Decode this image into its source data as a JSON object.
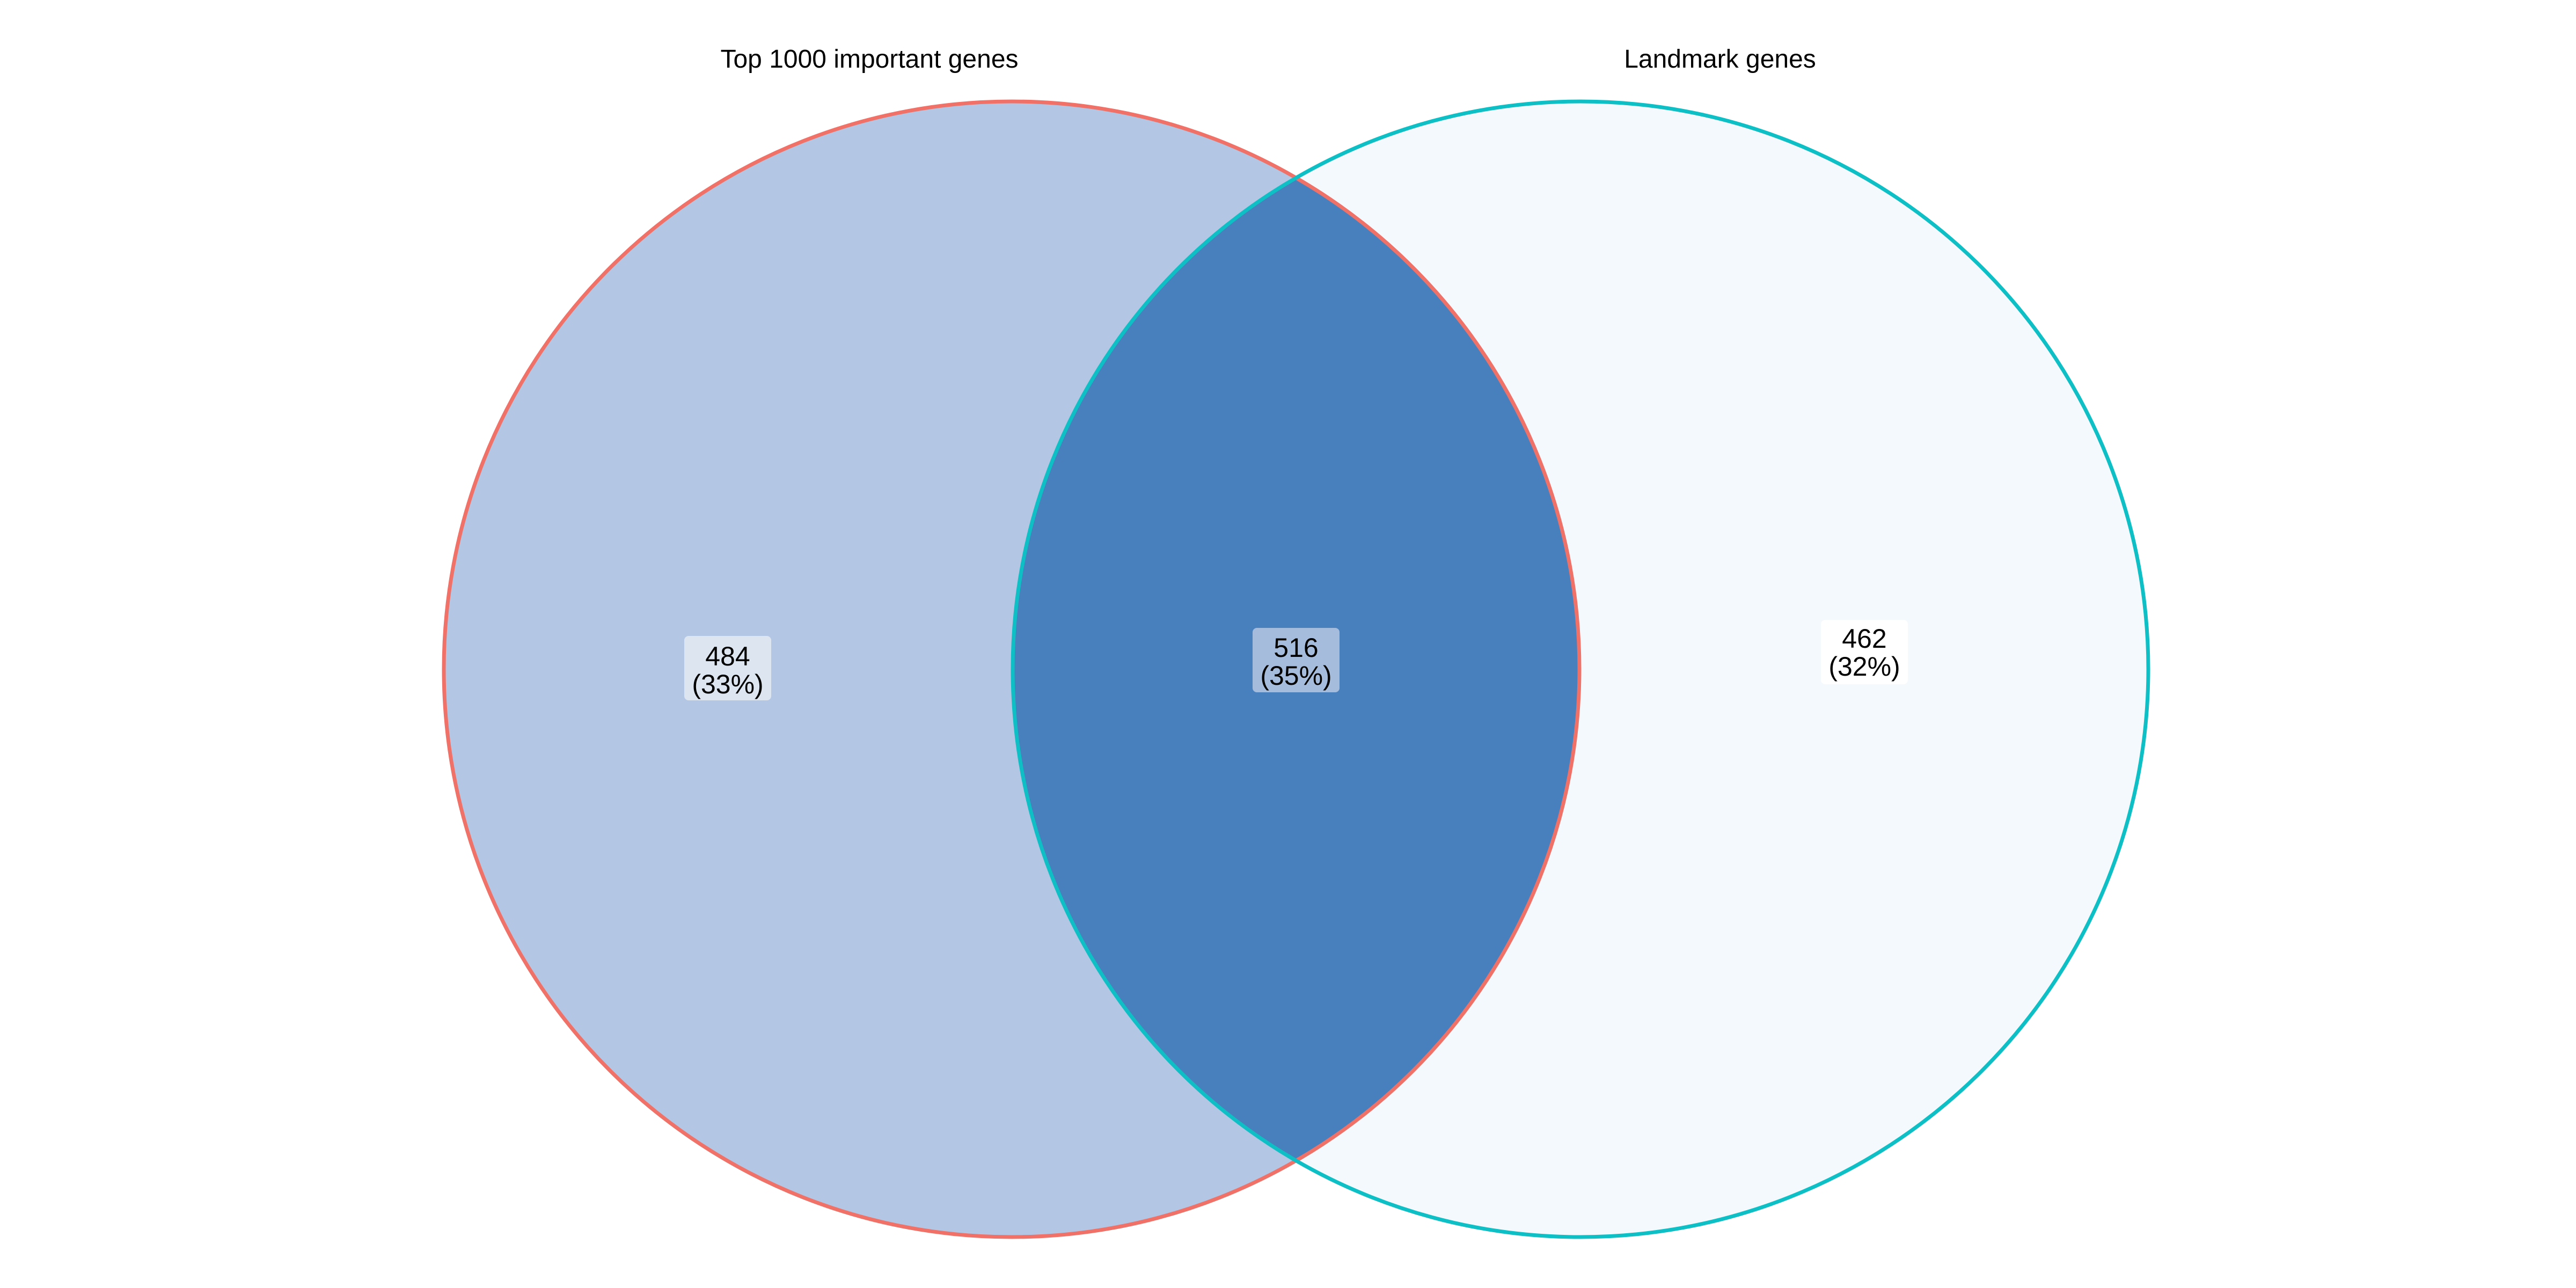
{
  "diagram": {
    "type": "venn",
    "sets": [
      {
        "id": "top1000",
        "label": "Top 1000 important genes",
        "fill": "#b3c6e3",
        "stroke": "#f07167"
      },
      {
        "id": "landmark",
        "label": "Landmark genes",
        "fill": "#f4f9fd",
        "stroke": "#0fbfc6"
      }
    ],
    "regions": [
      {
        "id": "only_top1000",
        "sets": [
          "top1000"
        ],
        "count": "484",
        "percent": "(33%)",
        "label_bg": "#dde5f0"
      },
      {
        "id": "both",
        "sets": [
          "top1000",
          "landmark"
        ],
        "count": "516",
        "percent": "(35%)",
        "fill": "#4880bd",
        "label_bg": "#a6bcdc"
      },
      {
        "id": "only_landmark",
        "sets": [
          "landmark"
        ],
        "count": "462",
        "percent": "(32%)",
        "label_bg": "#ffffff"
      }
    ]
  }
}
